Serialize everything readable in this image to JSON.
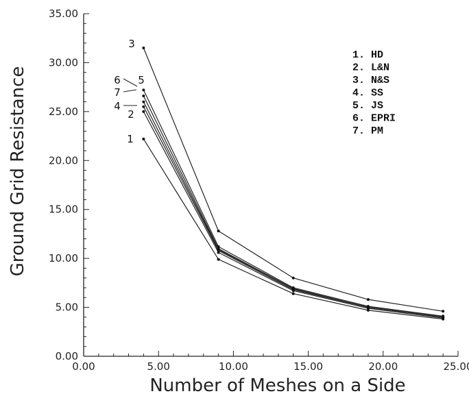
{
  "chart_data": {
    "type": "line",
    "title": "",
    "xlabel": "Number of Meshes on a Side",
    "ylabel": "Ground Grid Resistance",
    "xlim": [
      0,
      25
    ],
    "ylim": [
      0,
      35
    ],
    "x_ticks": [
      "0.00",
      "5.00",
      "10.00",
      "15.00",
      "20.00",
      "25.00"
    ],
    "y_ticks": [
      "0.00",
      "5.00",
      "10.00",
      "15.00",
      "20.00",
      "25.00",
      "30.00",
      "35.00"
    ],
    "x": [
      4,
      9,
      14,
      19,
      24
    ],
    "legend_position": "top-right",
    "grid": false,
    "series": [
      {
        "name": "HD",
        "number": "1",
        "legend": "1. HD",
        "values": [
          22.2,
          9.9,
          6.4,
          4.7,
          3.8
        ]
      },
      {
        "name": "L&N",
        "number": "2",
        "legend": "2. L&N",
        "values": [
          25.0,
          10.6,
          6.7,
          4.9,
          3.9
        ]
      },
      {
        "name": "N&S",
        "number": "3",
        "legend": "3. N&S",
        "values": [
          31.5,
          12.8,
          8.0,
          5.8,
          4.6
        ]
      },
      {
        "name": "SS",
        "number": "4",
        "legend": "4. SS",
        "values": [
          25.5,
          10.8,
          6.8,
          5.0,
          4.0
        ]
      },
      {
        "name": "JS",
        "number": "5",
        "legend": "5. JS",
        "values": [
          27.2,
          11.2,
          7.0,
          5.1,
          4.1
        ]
      },
      {
        "name": "EPRI",
        "number": "6",
        "legend": "6. EPRI",
        "values": [
          26.6,
          11.0,
          6.9,
          5.0,
          4.0
        ]
      },
      {
        "name": "PM",
        "number": "7",
        "legend": "7. PM",
        "values": [
          26.0,
          10.9,
          6.9,
          5.0,
          4.0
        ]
      }
    ]
  }
}
